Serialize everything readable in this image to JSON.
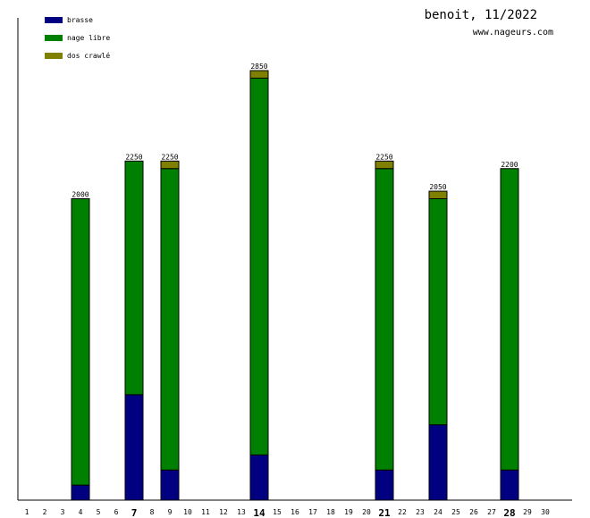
{
  "header": {
    "title": "benoit, 11/2022",
    "site": "www.nageurs.com"
  },
  "chart_data": {
    "type": "bar",
    "stacked": true,
    "categories": [
      "1",
      "2",
      "3",
      "4",
      "5",
      "6",
      "7",
      "8",
      "9",
      "10",
      "11",
      "12",
      "13",
      "14",
      "15",
      "16",
      "17",
      "18",
      "19",
      "20",
      "21",
      "22",
      "23",
      "24",
      "25",
      "26",
      "27",
      "28",
      "29",
      "30"
    ],
    "bold_ticks": [
      "7",
      "14",
      "21",
      "28"
    ],
    "ylim": [
      0,
      3200
    ],
    "legend_position": "top-left",
    "series": [
      {
        "name": "brasse",
        "color": "#000080",
        "values": [
          0,
          0,
          0,
          100,
          0,
          0,
          700,
          0,
          200,
          0,
          0,
          0,
          0,
          300,
          0,
          0,
          0,
          0,
          0,
          0,
          200,
          0,
          0,
          500,
          0,
          0,
          0,
          200,
          0,
          0
        ]
      },
      {
        "name": "nage libre",
        "color": "#008000",
        "values": [
          0,
          0,
          0,
          1900,
          0,
          0,
          1550,
          0,
          2000,
          0,
          0,
          0,
          0,
          2500,
          0,
          0,
          0,
          0,
          0,
          0,
          2000,
          0,
          0,
          1500,
          0,
          0,
          0,
          2000,
          0,
          0
        ]
      },
      {
        "name": "dos crawlé",
        "color": "#808000",
        "values": [
          0,
          0,
          0,
          0,
          0,
          0,
          0,
          0,
          50,
          0,
          0,
          0,
          0,
          50,
          0,
          0,
          0,
          0,
          0,
          0,
          50,
          0,
          0,
          50,
          0,
          0,
          0,
          0,
          0,
          0
        ]
      }
    ],
    "totals": [
      null,
      null,
      null,
      "2000",
      null,
      null,
      "2250",
      null,
      "2250",
      null,
      null,
      null,
      null,
      "2850",
      null,
      null,
      null,
      null,
      null,
      null,
      "2250",
      null,
      null,
      "2050",
      null,
      null,
      null,
      "2200",
      null,
      null
    ]
  }
}
